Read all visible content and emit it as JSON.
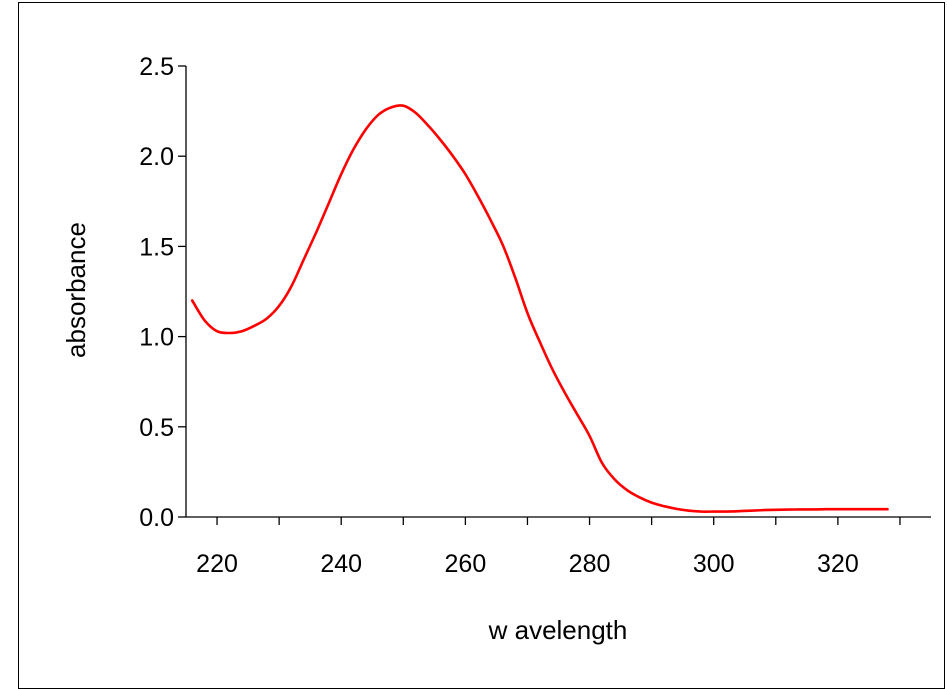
{
  "chart_data": {
    "type": "line",
    "title": "",
    "xlabel": "w avelength",
    "ylabel": "absorbance",
    "xlim": [
      215,
      335
    ],
    "ylim": [
      0,
      2.5
    ],
    "xticks": [
      220,
      240,
      260,
      280,
      300,
      320
    ],
    "xtick_labels": [
      "220",
      "240",
      "260",
      "280",
      "300",
      "320"
    ],
    "yticks": [
      0,
      0.5,
      1.0,
      1.5,
      2.0,
      2.5
    ],
    "ytick_labels": [
      "0.0",
      "0.5",
      "1.0",
      "1.5",
      "2.0",
      "2.5"
    ],
    "grid": false,
    "series": [
      {
        "color": "#ff0000",
        "x": [
          216,
          218,
          220,
          222,
          224,
          226,
          228,
          230,
          232,
          234,
          236,
          238,
          240,
          242,
          244,
          246,
          248,
          250,
          252,
          254,
          256,
          258,
          260,
          262,
          264,
          266,
          268,
          270,
          272,
          274,
          276,
          278,
          280,
          282,
          284,
          286,
          288,
          290,
          292,
          294,
          296,
          298,
          300,
          302,
          304,
          306,
          308,
          310,
          312,
          314,
          316,
          318,
          320,
          322,
          324,
          326,
          328
        ],
        "y": [
          1.2,
          1.09,
          1.03,
          1.02,
          1.03,
          1.06,
          1.1,
          1.17,
          1.28,
          1.43,
          1.58,
          1.74,
          1.9,
          2.04,
          2.15,
          2.23,
          2.27,
          2.28,
          2.24,
          2.17,
          2.09,
          2.0,
          1.9,
          1.78,
          1.65,
          1.51,
          1.33,
          1.13,
          0.97,
          0.82,
          0.69,
          0.57,
          0.45,
          0.3,
          0.21,
          0.15,
          0.11,
          0.08,
          0.06,
          0.045,
          0.035,
          0.03,
          0.03,
          0.03,
          0.032,
          0.035,
          0.038,
          0.04,
          0.041,
          0.042,
          0.042,
          0.043,
          0.043,
          0.043,
          0.043,
          0.043,
          0.043
        ]
      }
    ]
  }
}
